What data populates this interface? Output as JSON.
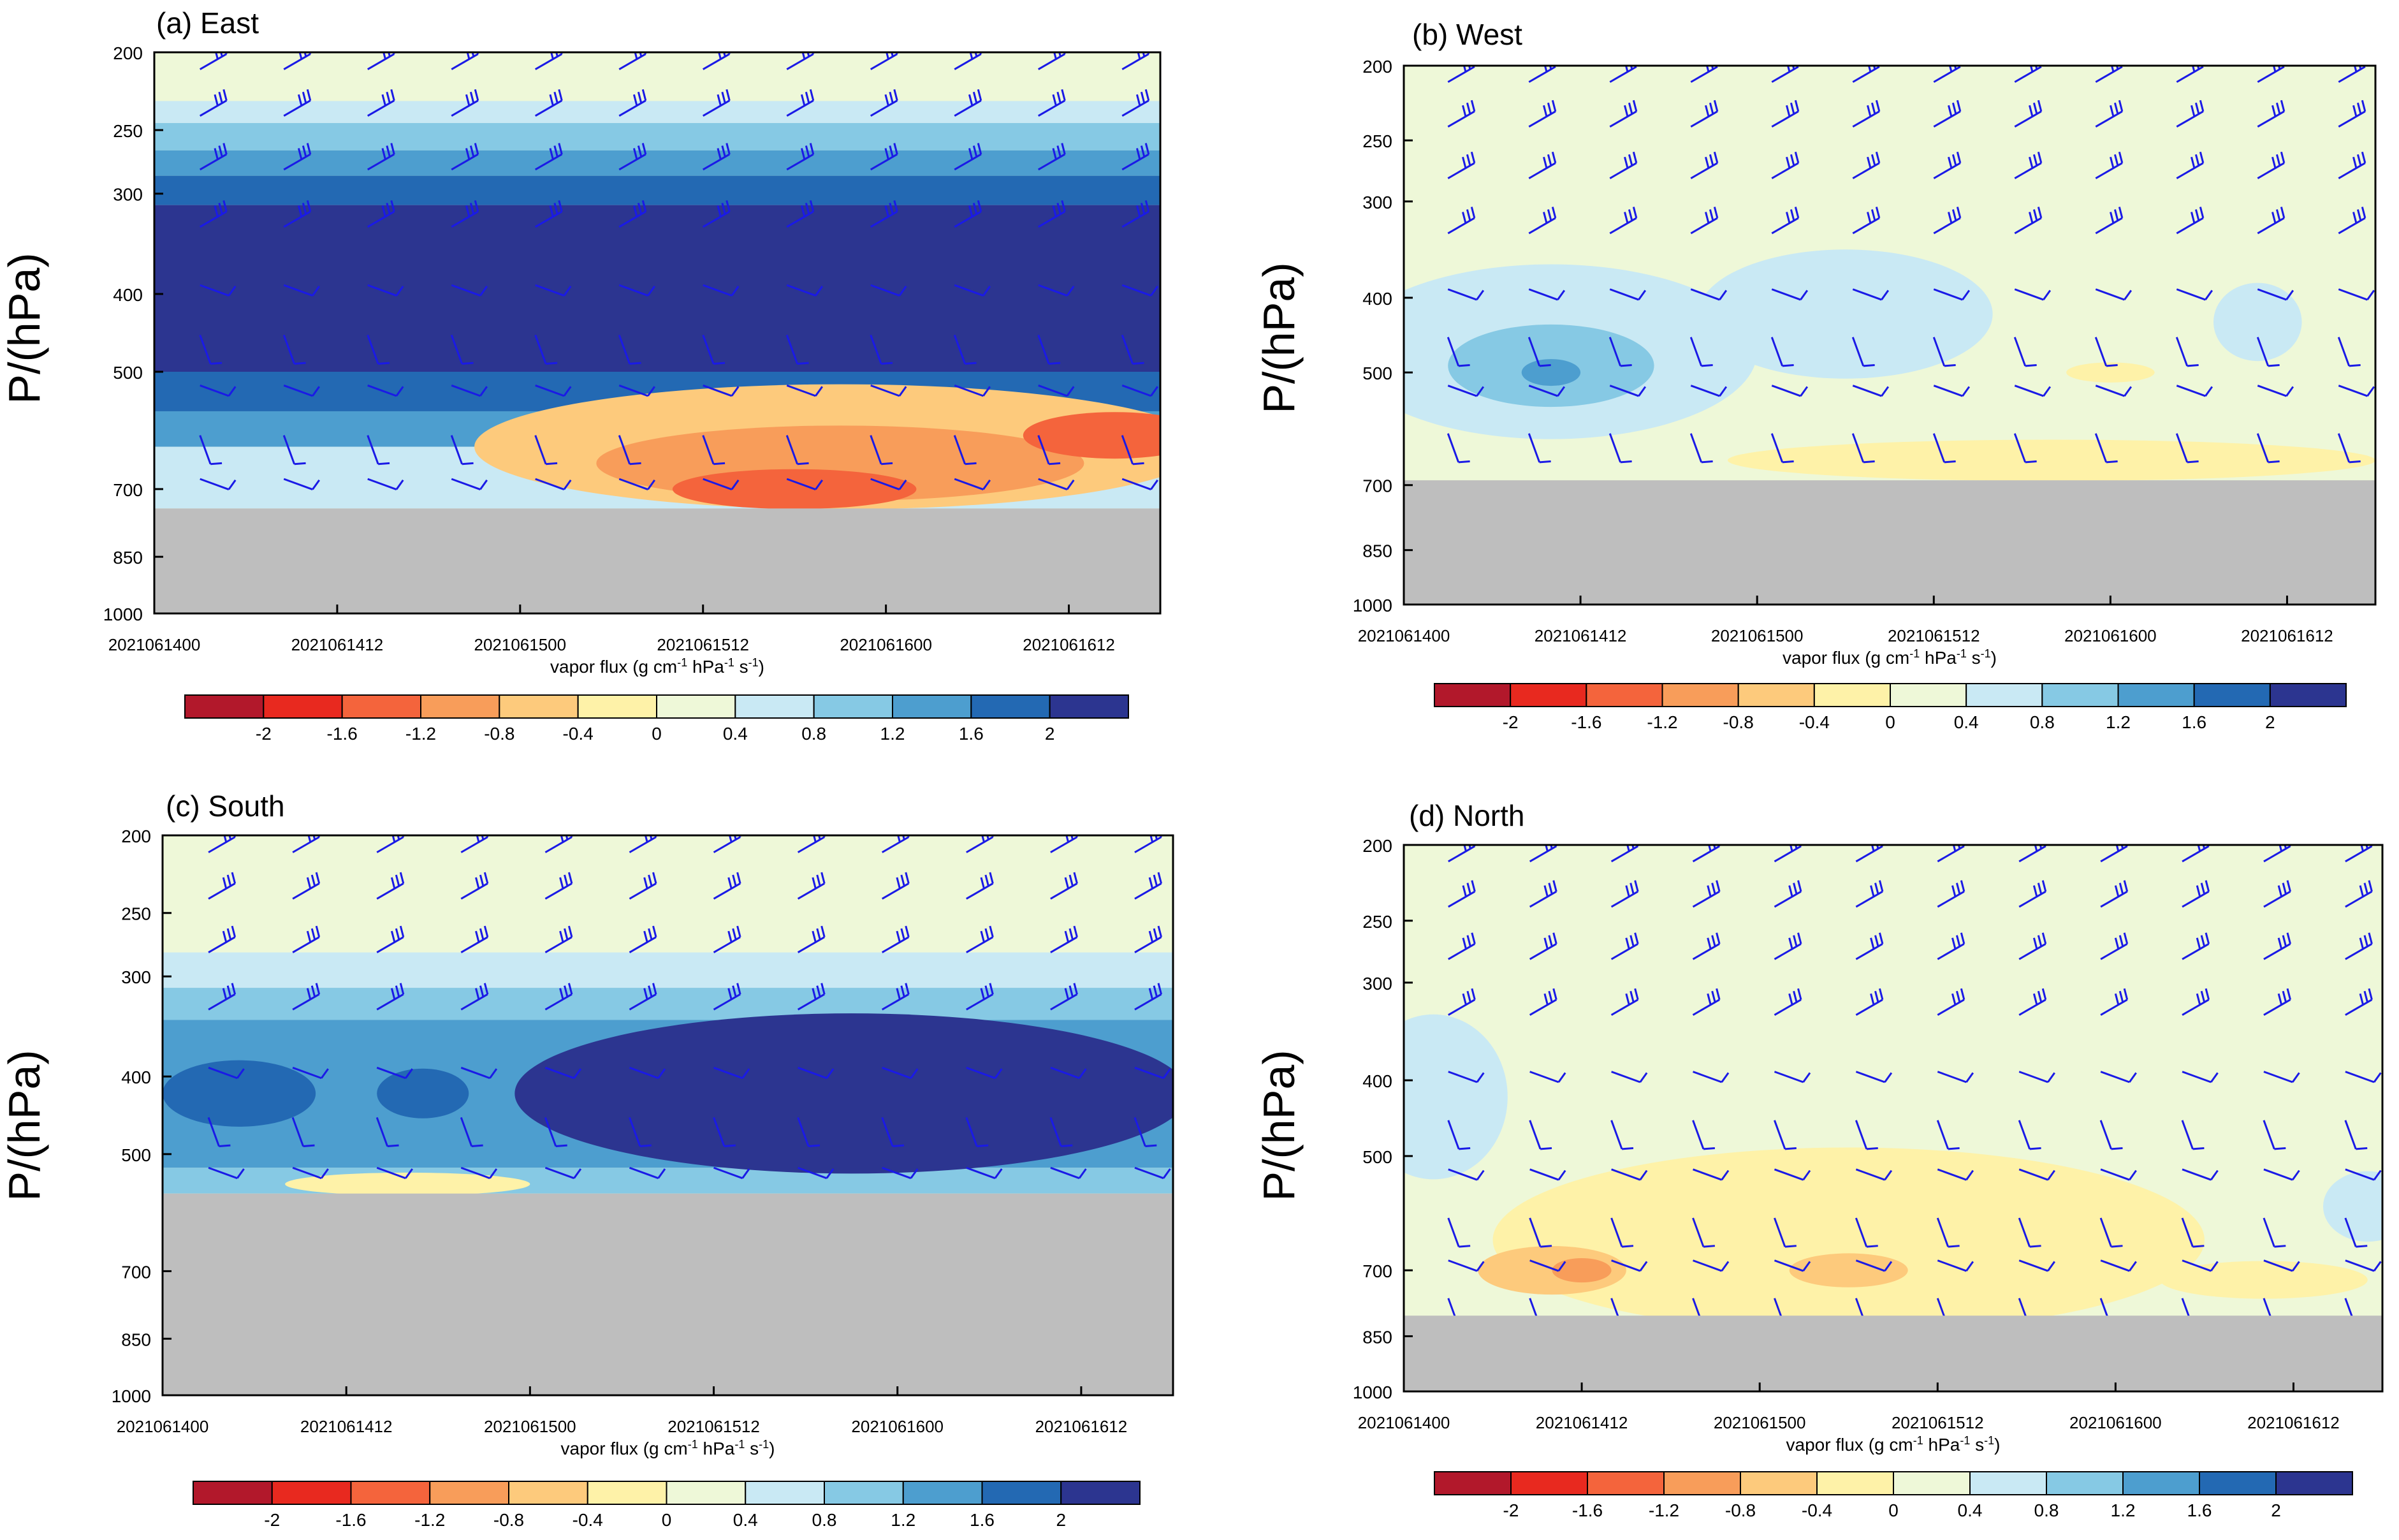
{
  "colors": [
    "#b2182b",
    "#e8291f",
    "#f4643c",
    "#f89d5a",
    "#fdca7c",
    "#fef2a8",
    "#eef8d8",
    "#c9e9f4",
    "#86c9e4",
    "#4d9ecf",
    "#2369b3",
    "#2c3590"
  ],
  "terrain_color": "#bebebe",
  "wind_color": "#1a1ae6",
  "ylabel": "P/(hPa)",
  "xlabel": "vapor flux (g cm",
  "xlabel_parts": [
    "-1",
    " hPa",
    "-1",
    " s",
    "-1",
    ")"
  ],
  "pressure_ticks": [
    "200",
    "250",
    "300",
    "400",
    "500",
    "700",
    "850",
    "1000"
  ],
  "time_ticks": [
    "2021061400",
    "2021061412",
    "2021061500",
    "2021061512",
    "2021061600",
    "2021061612"
  ],
  "colorbar_labels": [
    "-2",
    "-1.6",
    "-1.2",
    "-0.8",
    "-0.4",
    "0",
    "0.4",
    "0.8",
    "1.2",
    "1.6",
    "2"
  ],
  "chart_data": [
    {
      "type": "heatmap",
      "title": "(a)  East",
      "terrain_top_hPa": 740,
      "pressure_range": [
        1000,
        200
      ],
      "time_range_hours": [
        0,
        66
      ],
      "bands": [
        {
          "bottom_hPa": 200,
          "top_hPa": 230,
          "level": 6
        },
        {
          "bottom_hPa": 230,
          "top_hPa": 245,
          "level": 7
        },
        {
          "bottom_hPa": 245,
          "top_hPa": 265,
          "level": 8
        },
        {
          "bottom_hPa": 265,
          "top_hPa": 285,
          "level": 9
        },
        {
          "bottom_hPa": 285,
          "top_hPa": 310,
          "level": 10
        },
        {
          "bottom_hPa": 310,
          "top_hPa": 500,
          "level": 11
        },
        {
          "bottom_hPa": 500,
          "top_hPa": 560,
          "level": 10
        },
        {
          "bottom_hPa": 560,
          "top_hPa": 620,
          "level": 9
        },
        {
          "bottom_hPa": 620,
          "top_hPa": 740,
          "level": 7
        }
      ],
      "blobs": [
        {
          "t": 45,
          "p": 620,
          "rt": 24,
          "rp": 110,
          "level": 4
        },
        {
          "t": 45,
          "p": 650,
          "rt": 16,
          "rp": 70,
          "level": 3
        },
        {
          "t": 42,
          "p": 700,
          "rt": 8,
          "rp": 40,
          "level": 2
        },
        {
          "t": 63,
          "p": 600,
          "rt": 6,
          "rp": 40,
          "level": 2
        }
      ]
    },
    {
      "type": "heatmap",
      "title": "(b)  West",
      "terrain_top_hPa": 690,
      "pressure_range": [
        1000,
        200
      ],
      "time_range_hours": [
        0,
        66
      ],
      "bands": [
        {
          "bottom_hPa": 200,
          "top_hPa": 690,
          "level": 6
        }
      ],
      "blobs": [
        {
          "t": 10,
          "p": 470,
          "rt": 14,
          "rp": 120,
          "level": 7
        },
        {
          "t": 10,
          "p": 490,
          "rt": 7,
          "rp": 60,
          "level": 8
        },
        {
          "t": 10,
          "p": 500,
          "rt": 2,
          "rp": 20,
          "level": 9
        },
        {
          "t": 30,
          "p": 420,
          "rt": 10,
          "rp": 80,
          "level": 7
        },
        {
          "t": 58,
          "p": 430,
          "rt": 3,
          "rp": 50,
          "level": 7
        },
        {
          "t": 44,
          "p": 650,
          "rt": 22,
          "rp": 40,
          "level": 5
        },
        {
          "t": 48,
          "p": 500,
          "rt": 3,
          "rp": 15,
          "level": 5
        }
      ]
    },
    {
      "type": "heatmap",
      "title": "(c)  South",
      "terrain_top_hPa": 560,
      "pressure_range": [
        1000,
        200
      ],
      "time_range_hours": [
        0,
        66
      ],
      "bands": [
        {
          "bottom_hPa": 200,
          "top_hPa": 280,
          "level": 6
        },
        {
          "bottom_hPa": 280,
          "top_hPa": 310,
          "level": 7
        },
        {
          "bottom_hPa": 310,
          "top_hPa": 340,
          "level": 8
        },
        {
          "bottom_hPa": 340,
          "top_hPa": 520,
          "level": 9
        },
        {
          "bottom_hPa": 520,
          "top_hPa": 560,
          "level": 8
        }
      ],
      "blobs": [
        {
          "t": 45,
          "p": 420,
          "rt": 22,
          "rp": 95,
          "level": 11
        },
        {
          "t": 5,
          "p": 420,
          "rt": 5,
          "rp": 40,
          "level": 10
        },
        {
          "t": 17,
          "p": 420,
          "rt": 3,
          "rp": 30,
          "level": 10
        },
        {
          "t": 16,
          "p": 545,
          "rt": 8,
          "rp": 18,
          "level": 5
        }
      ]
    },
    {
      "type": "heatmap",
      "title": "(d)  North",
      "terrain_top_hPa": 800,
      "pressure_range": [
        1000,
        200
      ],
      "time_range_hours": [
        0,
        66
      ],
      "bands": [
        {
          "bottom_hPa": 200,
          "top_hPa": 800,
          "level": 6
        }
      ],
      "blobs": [
        {
          "t": 2,
          "p": 420,
          "rt": 5,
          "rp": 100,
          "level": 7
        },
        {
          "t": 65,
          "p": 580,
          "rt": 3,
          "rp": 60,
          "level": 7
        },
        {
          "t": 30,
          "p": 640,
          "rt": 24,
          "rp": 170,
          "level": 5
        },
        {
          "t": 10,
          "p": 700,
          "rt": 5,
          "rp": 50,
          "level": 4
        },
        {
          "t": 12,
          "p": 700,
          "rt": 2,
          "rp": 25,
          "level": 3
        },
        {
          "t": 30,
          "p": 700,
          "rt": 4,
          "rp": 35,
          "level": 4
        },
        {
          "t": 58,
          "p": 720,
          "rt": 7,
          "rp": 40,
          "level": 5
        }
      ]
    }
  ]
}
